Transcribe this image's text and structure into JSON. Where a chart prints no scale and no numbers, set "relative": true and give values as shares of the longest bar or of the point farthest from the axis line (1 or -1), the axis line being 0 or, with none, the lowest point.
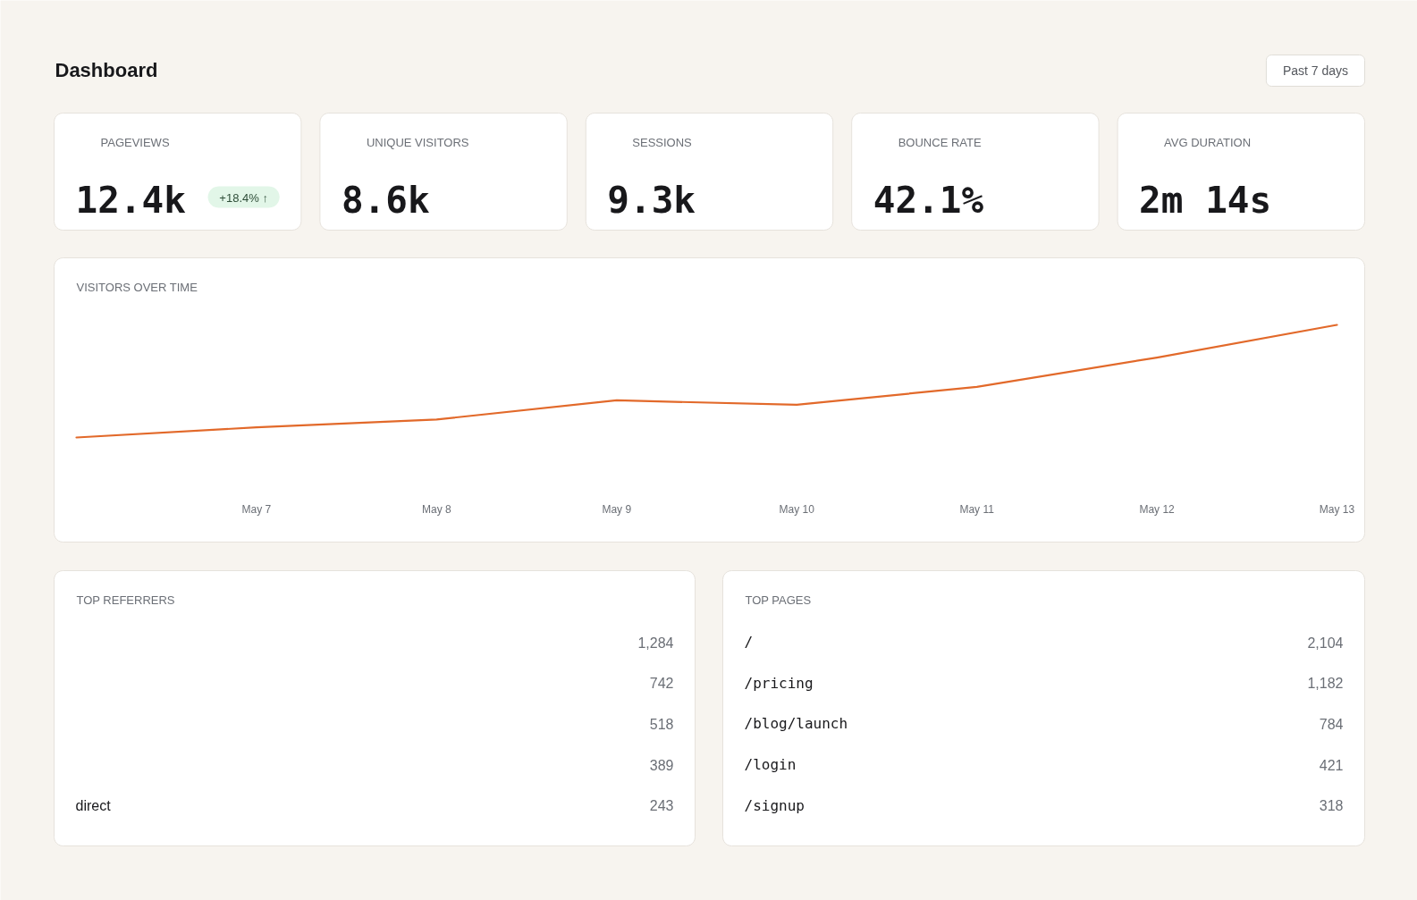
{
  "chart_data": [
    {
      "type": "other",
      "title": "Dashboard",
      "annotations": [
        "Past 7 days"
      ]
    },
    {
      "type": "other",
      "title": "PAGEVIEWS",
      "annotations": [
        "12.4k",
        "+18.4% ↑"
      ]
    },
    {
      "type": "other",
      "title": "UNIQUE VISITORS",
      "annotations": [
        "8.6k"
      ]
    },
    {
      "type": "other",
      "title": "SESSIONS",
      "annotations": [
        "9.3k"
      ]
    },
    {
      "type": "other",
      "title": "BOUNCE RATE",
      "annotations": [
        "42.1%"
      ]
    },
    {
      "type": "other",
      "title": "AVG DURATION",
      "annotations": [
        "2m 14s"
      ]
    },
    {
      "type": "line",
      "title": "VISITORS OVER TIME",
      "categories": [
        null,
        "May 7",
        "May 8",
        "May 9",
        "May 10",
        "May 11",
        "May 12",
        "May 13"
      ],
      "values": [
        0,
        0.09,
        0.16,
        0.33,
        0.29,
        0.45,
        0.71,
        1
      ],
      "color": "#e2692a",
      "relative": true
    },
    {
      "type": "other",
      "title": "TOP REFERRERS",
      "categories": [
        null,
        null,
        null,
        null,
        "direct"
      ],
      "values": [
        1284,
        742,
        518,
        389,
        243
      ],
      "value_labels": [
        "1,284",
        "742",
        "518",
        "389",
        "243"
      ]
    },
    {
      "type": "other",
      "title": "TOP PAGES",
      "categories": [
        "/",
        "/pricing",
        "/blog/launch",
        "/login",
        "/signup"
      ],
      "values": [
        2104,
        1182,
        784,
        421,
        318
      ],
      "value_labels": [
        "2,104",
        "1,182",
        "784",
        "421",
        "318"
      ]
    }
  ]
}
